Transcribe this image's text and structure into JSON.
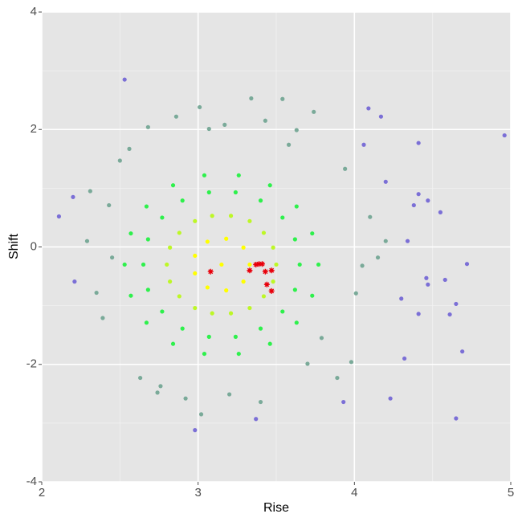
{
  "chart_data": {
    "type": "scatter",
    "xlabel": "Rise",
    "ylabel": "Shift",
    "xlim": [
      2,
      5
    ],
    "ylim": [
      -4,
      4
    ],
    "xticks": [
      2,
      3,
      4,
      5
    ],
    "yticks": [
      -4,
      -2,
      0,
      2,
      4
    ],
    "xminor": [
      2.5,
      3.5,
      4.5
    ],
    "yminor": [
      -3,
      -1,
      1,
      3
    ],
    "grid": true,
    "series": [
      {
        "color": "#7b6fd6",
        "marker": "circle",
        "x": [
          2.53,
          2.11,
          4.96,
          4.65,
          4.69,
          4.55,
          4.58,
          4.61,
          4.72,
          4.65,
          4.23,
          4.41,
          4.47,
          4.41,
          4.09,
          4.17,
          4.41,
          4.3,
          4.32,
          4.46,
          4.06,
          2.2,
          2.21,
          3.93,
          2.98,
          3.37,
          4.47,
          4.34,
          4.38,
          4.2
        ],
        "y": [
          2.85,
          0.52,
          1.9,
          -2.92,
          -1.78,
          0.59,
          -0.56,
          -1.15,
          -0.29,
          -0.97,
          -2.58,
          0.9,
          0.79,
          1.77,
          2.36,
          2.22,
          -1.14,
          -0.88,
          -1.9,
          -0.53,
          1.74,
          0.85,
          -0.59,
          -2.64,
          -3.12,
          -2.93,
          -0.64,
          0.1,
          0.71,
          1.11
        ]
      },
      {
        "color": "#7aaa99",
        "marker": "circle",
        "x": [
          3.01,
          3.34,
          3.54,
          3.74,
          2.68,
          2.31,
          2.29,
          2.35,
          2.39,
          2.63,
          2.74,
          3.02,
          3.2,
          3.7,
          4.01,
          4.05,
          4.1,
          3.94,
          3.63,
          2.5,
          2.56,
          2.86,
          3.17,
          3.43,
          2.76,
          2.92,
          3.79,
          3.98,
          4.15,
          4.2,
          2.45,
          2.43,
          3.89,
          3.4,
          3.07,
          3.58
        ],
        "y": [
          2.38,
          2.53,
          2.52,
          2.3,
          2.04,
          0.95,
          0.1,
          -0.78,
          -1.21,
          -2.23,
          -2.48,
          -2.85,
          -2.51,
          -1.99,
          -0.79,
          -0.32,
          0.51,
          1.33,
          1.99,
          1.47,
          1.67,
          2.22,
          2.08,
          2.15,
          -2.37,
          -2.58,
          -1.55,
          -1.96,
          -0.18,
          0.1,
          -0.18,
          0.71,
          -2.23,
          -2.64,
          2.01,
          1.74
        ]
      },
      {
        "color": "#2ef04c",
        "marker": "circle",
        "x": [
          3.77,
          3.73,
          3.63,
          3.46,
          3.26,
          3.04,
          2.84,
          2.67,
          2.57,
          2.53,
          2.57,
          2.67,
          2.84,
          3.04,
          3.26,
          3.46,
          3.63,
          3.73,
          3.65,
          3.62,
          3.54,
          3.4,
          3.24,
          3.07,
          2.9,
          2.77,
          2.68,
          2.65,
          2.68,
          2.77,
          2.9,
          3.07,
          3.24,
          3.4,
          3.54,
          3.62
        ],
        "y": [
          -0.3,
          0.23,
          0.69,
          1.05,
          1.22,
          1.22,
          1.05,
          0.69,
          0.23,
          -0.3,
          -0.83,
          -1.29,
          -1.65,
          -1.82,
          -1.82,
          -1.65,
          -1.29,
          -0.83,
          -0.3,
          0.13,
          0.5,
          0.79,
          0.93,
          0.93,
          0.79,
          0.5,
          0.13,
          -0.3,
          -0.73,
          -1.1,
          -1.39,
          -1.53,
          -1.53,
          -1.39,
          -1.1,
          -0.73
        ]
      },
      {
        "color": "#bdf726",
        "marker": "circle",
        "x": [
          3.5,
          3.48,
          3.42,
          3.33,
          3.21,
          3.09,
          2.98,
          2.88,
          2.82,
          2.8,
          2.82,
          2.88,
          2.98,
          3.09,
          3.21,
          3.33,
          3.42,
          3.48
        ],
        "y": [
          -0.3,
          -0.01,
          0.24,
          0.44,
          0.53,
          0.53,
          0.44,
          0.24,
          -0.01,
          -0.3,
          -0.59,
          -0.84,
          -1.04,
          -1.13,
          -1.13,
          -1.04,
          -0.84,
          -0.59
        ]
      },
      {
        "color": "#ffff00",
        "marker": "circle",
        "x": [
          3.33,
          3.29,
          3.18,
          3.06,
          2.98,
          2.98,
          3.06,
          3.18,
          3.29,
          3.15
        ],
        "y": [
          -0.3,
          -0.01,
          0.14,
          0.09,
          -0.15,
          -0.45,
          -0.69,
          -0.74,
          -0.59,
          -0.3
        ]
      },
      {
        "color": "#e8000b",
        "marker": "star",
        "x": [
          3.08,
          3.33,
          3.37,
          3.39,
          3.41,
          3.43,
          3.47,
          3.44,
          3.47
        ],
        "y": [
          -0.42,
          -0.4,
          -0.3,
          -0.29,
          -0.29,
          -0.42,
          -0.4,
          -0.64,
          -0.75
        ]
      }
    ]
  }
}
